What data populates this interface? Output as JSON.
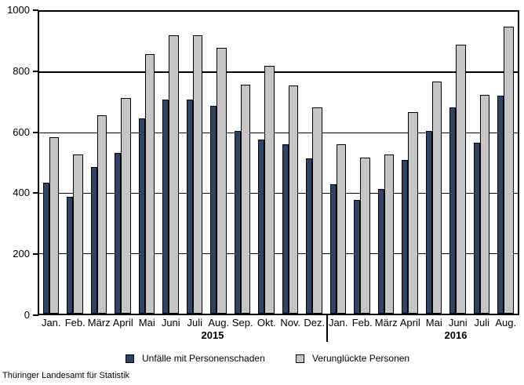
{
  "chart_data": {
    "type": "bar",
    "title": "",
    "categories": [
      "Jan.",
      "Feb.",
      "März",
      "April",
      "Mai",
      "Juni",
      "Juli",
      "Aug.",
      "Sep.",
      "Okt.",
      "Nov.",
      "Dez.",
      "Jan.",
      "Feb.",
      "März",
      "April",
      "Mai",
      "Juni",
      "Juli",
      "Aug."
    ],
    "year_groups": [
      {
        "label": "2015",
        "month_count": 12
      },
      {
        "label": "2016",
        "month_count": 8
      }
    ],
    "series": [
      {
        "name": "Unfälle mit Personenschaden",
        "color": "#2e4367",
        "values": [
          435,
          386,
          487,
          532,
          648,
          710,
          708,
          689,
          604,
          577,
          560,
          514,
          429,
          376,
          413,
          508,
          606,
          684,
          567,
          722
        ]
      },
      {
        "name": "Verunglückte Personen",
        "color": "#c5c5c5",
        "values": [
          585,
          527,
          658,
          714,
          861,
          922,
          921,
          881,
          759,
          820,
          756,
          684,
          562,
          516,
          528,
          667,
          770,
          890,
          726,
          951
        ]
      }
    ],
    "ylim": [
      0,
      1000
    ],
    "yticks": [
      0,
      200,
      400,
      600,
      800,
      1000
    ],
    "grid": true,
    "legend_position": "bottom",
    "bar_border_color": "#000000",
    "axis_color": "#000000"
  },
  "footer": {
    "source": "Thüringer  Landesamt für Statistik"
  }
}
